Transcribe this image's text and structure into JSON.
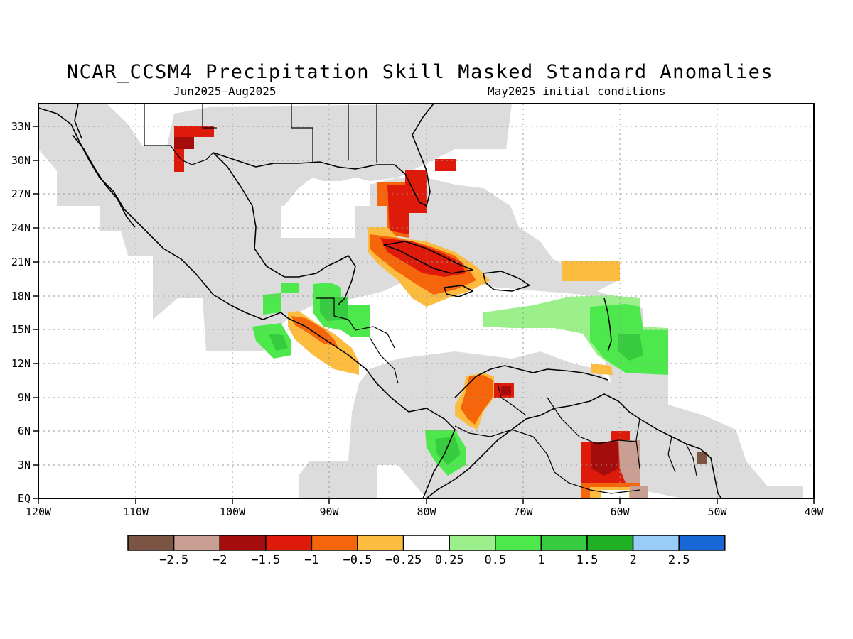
{
  "title": "NCAR_CCSM4 Precipitation Skill Masked Standard Anomalies",
  "subtitle_left": "Jun2025–Aug2025",
  "subtitle_right": "May2025 initial conditions",
  "lon_labels": [
    "120W",
    "110W",
    "100W",
    "90W",
    "80W",
    "70W",
    "60W",
    "50W",
    "40W"
  ],
  "lat_labels": [
    "EQ",
    "3N",
    "6N",
    "9N",
    "12N",
    "15N",
    "18N",
    "21N",
    "24N",
    "27N",
    "30N",
    "33N"
  ],
  "colorbar": {
    "colors": [
      "#7b5444",
      "#c99f94",
      "#a50d0d",
      "#de1a0a",
      "#f5650b",
      "#fbbc3f",
      "#ffffff",
      "#9cf08c",
      "#4ce84c",
      "#37cc40",
      "#20b023",
      "#99ccf7",
      "#1867d6"
    ],
    "labels": [
      "−2.5",
      "−2",
      "−1.5",
      "−1",
      "−0.5",
      "−0.25",
      "0.25",
      "0.5",
      "1",
      "1.5",
      "2",
      "2.5"
    ]
  },
  "colors": {
    "mask_gray": "#dcdcdc",
    "frame": "#000000",
    "grid": "#9a9a9a"
  }
}
